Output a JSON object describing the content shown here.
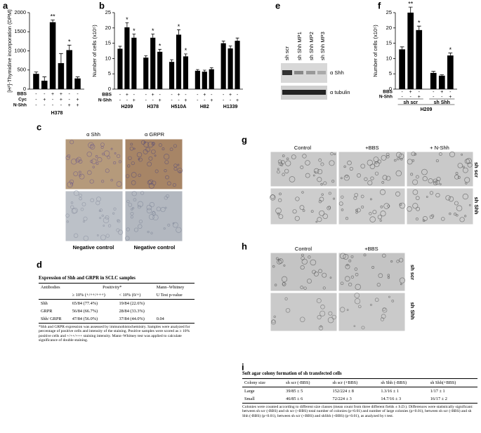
{
  "panel_labels": [
    "a",
    "b",
    "c",
    "d",
    "e",
    "f",
    "g",
    "h",
    "i"
  ],
  "chart_data": [
    {
      "type": "bar",
      "y_label": "[H³]-Thymidine incorporation (DPM)",
      "color": "#000000",
      "values": [
        400,
        220,
        1750,
        680,
        1020,
        280
      ],
      "errors": [
        50,
        100,
        60,
        250,
        130,
        40
      ],
      "annotations": [
        null,
        null,
        "**",
        null,
        "*",
        null
      ],
      "ylim": [
        0,
        2000
      ],
      "yticks": [
        0,
        500,
        1000,
        1500,
        2000
      ],
      "condition_rows": [
        {
          "label": "BBS",
          "signs": [
            "-",
            "-",
            "+",
            "+",
            "-",
            "-"
          ]
        },
        {
          "label": "Cyc",
          "signs": [
            "-",
            "+",
            "-",
            "+",
            "-",
            "+"
          ]
        },
        {
          "label": "N-Shh",
          "signs": [
            "-",
            "-",
            "-",
            "-",
            "+",
            "+"
          ]
        }
      ],
      "group_label": "H378"
    },
    {
      "type": "bar",
      "y_label": "Number of cells (x10⁵)",
      "color": "#000000",
      "values": [
        13.2,
        20.2,
        16.8,
        10.3,
        16.8,
        12.2,
        8.9,
        17.8,
        10.7,
        6.0,
        5.7,
        6.5,
        15.0,
        13.3,
        15.8
      ],
      "errors": [
        0.8,
        1.5,
        1.2,
        0.6,
        1.2,
        0.8,
        0.7,
        1.6,
        0.8,
        0.4,
        0.5,
        0.5,
        0.7,
        0.8,
        0.9
      ],
      "annotations": [
        null,
        "*",
        "*",
        null,
        "*",
        "*",
        null,
        "*",
        "*",
        null,
        null,
        null,
        null,
        null,
        null
      ],
      "ylim": [
        0,
        25
      ],
      "yticks": [
        0,
        5,
        10,
        15,
        20,
        25
      ],
      "condition_rows": [
        {
          "label": "BBS",
          "signs": [
            "-",
            "+",
            "-",
            "-",
            "+",
            "-",
            "-",
            "+",
            "-",
            "-",
            "+",
            "-",
            "-",
            "+",
            "-"
          ]
        },
        {
          "label": "N-Shh",
          "signs": [
            "-",
            "-",
            "+",
            "-",
            "-",
            "+",
            "-",
            "-",
            "+",
            "-",
            "-",
            "+",
            "-",
            "-",
            "+"
          ]
        }
      ],
      "groups": [
        "H209",
        "H378",
        "H510A",
        "H82",
        "H1339"
      ]
    },
    {
      "type": "bar",
      "y_label": "Number of cells (x10⁵)",
      "color": "#000000",
      "values": [
        13.0,
        25.0,
        19.3,
        5.3,
        4.4,
        11.0
      ],
      "errors": [
        0.8,
        1.8,
        1.3,
        0.5,
        0.3,
        0.8
      ],
      "annotations": [
        null,
        "**",
        "*",
        null,
        null,
        "*"
      ],
      "ylim": [
        0,
        25
      ],
      "yticks": [
        0,
        5,
        10,
        15,
        20,
        25
      ],
      "condition_rows": [
        {
          "label": "BBS",
          "signs": [
            "-",
            "+",
            "-",
            "-",
            "+",
            "-"
          ]
        },
        {
          "label": "N-Shh",
          "signs": [
            "-",
            "-",
            "+",
            "-",
            "-",
            "+"
          ]
        }
      ],
      "groups": [
        "sh scr",
        "sh Shh"
      ],
      "group_label": "H209"
    }
  ],
  "panel_c": {
    "columns": [
      "α Shh",
      "α GRPR"
    ],
    "bottom_labels": [
      "Negative control",
      "Negative control"
    ]
  },
  "panel_e": {
    "lanes": [
      "sh scr",
      "sh Shh MP1",
      "sh Shh MP2",
      "sh Shh MP3"
    ],
    "blots": [
      "α Shh",
      "α tubulin"
    ]
  },
  "panel_g": {
    "columns": [
      "Control",
      "+BBS",
      "+ N-Shh"
    ],
    "rows": [
      "sh scr",
      "sh Shh"
    ]
  },
  "panel_h": {
    "columns": [
      "Control",
      "+BBS"
    ],
    "rows": [
      "sh scr",
      "sh Shh"
    ]
  },
  "table_d": {
    "title": "Expression of Shh and GRPR in SCLC samples",
    "header": [
      [
        "Antibodies",
        "Positivity*",
        "Mann–Whitney"
      ],
      [
        "≥ 10% (+/++/+++)",
        "< 10% (0/+)",
        "U Test p-value"
      ]
    ],
    "rows": [
      [
        "Shh",
        "65/84 (77.4%)",
        "19/84 (22.6%)"
      ],
      [
        "GRPR",
        "56/84 (66.7%)",
        "28/84 (33.3%)"
      ],
      [
        "Shh/ GRPR",
        "47/84 (56.0%)",
        "37/84 (44.0%)",
        "0.04"
      ]
    ],
    "footnote": "*Shh and GRPR expression was assessed by immunohistochemistry. Samples were analyzed for percentage of positive cells and intensity of the staining. Positive samples were scored as ≥ 10% positive cells and +/++/+++ staining intensity. Mann–Whitney test was applied to calculate significance of double staining."
  },
  "table_i": {
    "title": "Soft agar colony formation of sh transfected cells",
    "header": [
      "Colony size",
      "sh scr (-BBS)",
      "sh scr (+BBS)",
      "sh Shh (-BBS)",
      "sh Shh(+BBS)"
    ],
    "rows": [
      [
        "Large",
        "39/85 ± 5",
        "152/224 ± 8",
        "1.3/16 ± 1",
        "1/17 ± 1"
      ],
      [
        "Small",
        "46/85 ± 6",
        "72/224 ± 3",
        "14.7/16 ± 3",
        "16/17 ± 2"
      ]
    ],
    "footnote": "Colonies were counted according to different size classes (mean count from three different fields ± S.D.). Differences were statistically significant: between sh scr (-BBS) and sh scr (+BBS) total number of colonies (p<0.01) and number of large colonies (p<0.01), between sh scr (-BBS) and sh Shh (-BBS) (p<0.01), between sh scr (+BBS) and shShh (+BBS) (p<0.01), as analyzed by t test."
  }
}
